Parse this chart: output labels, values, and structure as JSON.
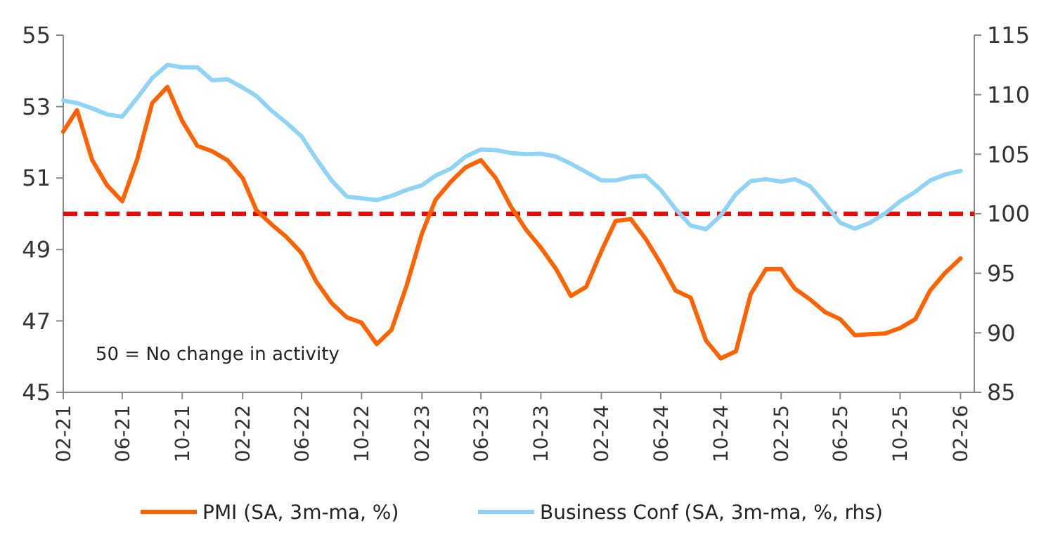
{
  "chart_data": {
    "type": "line",
    "x": [
      "2021-02",
      "2021-03",
      "2021-04",
      "2021-05",
      "2021-06",
      "2021-07",
      "2021-08",
      "2021-09",
      "2021-10",
      "2021-11",
      "2021-12",
      "2022-01",
      "2022-02",
      "2022-03",
      "2022-04",
      "2022-05",
      "2022-06",
      "2022-07",
      "2022-08",
      "2022-09",
      "2022-10",
      "2022-11",
      "2022-12",
      "2023-01",
      "2023-02",
      "2023-03",
      "2023-04",
      "2023-05",
      "2023-06",
      "2023-07",
      "2023-08",
      "2023-09",
      "2023-10",
      "2023-11",
      "2023-12",
      "2024-01",
      "2024-02",
      "2024-03",
      "2024-04",
      "2024-05",
      "2024-06",
      "2024-07",
      "2024-08",
      "2024-09",
      "2024-10",
      "2024-11",
      "2024-12",
      "2025-01",
      "2025-02",
      "2025-03",
      "2025-04",
      "2025-05",
      "2025-06",
      "2025-07",
      "2025-08",
      "2025-09",
      "2025-10",
      "2025-11",
      "2025-12",
      "2026-01",
      "2026-02"
    ],
    "series": [
      {
        "name": "PMI (SA, 3m-ma, %)",
        "color": "#ff6200",
        "values": [
          52.3,
          52.9,
          51.5,
          50.8,
          50.35,
          51.5,
          53.1,
          53.55,
          52.6,
          51.9,
          51.75,
          51.5,
          51.0,
          50.1,
          49.7,
          49.35,
          48.9,
          48.1,
          47.5,
          47.1,
          46.95,
          46.35,
          46.75,
          48.0,
          49.45,
          50.4,
          50.9,
          51.3,
          51.5,
          51.0,
          50.2,
          49.55,
          49.05,
          48.45,
          47.7,
          47.95,
          48.95,
          49.8,
          49.85,
          49.3,
          48.6,
          47.85,
          47.65,
          46.45,
          45.95,
          46.15,
          47.75,
          48.45,
          48.45,
          47.9,
          47.6,
          47.25,
          47.05,
          46.6,
          46.63,
          46.65,
          46.8,
          47.05,
          47.85,
          48.35,
          48.75
        ]
      },
      {
        "name": "Business Conf (SA, 3m-ma, %, rhs)",
        "color": "#8fd3f7",
        "axis": "y2",
        "values": [
          109.5,
          109.3,
          108.85,
          108.35,
          108.15,
          109.7,
          111.4,
          112.5,
          112.3,
          112.3,
          111.2,
          111.3,
          110.6,
          109.9,
          108.65,
          107.65,
          106.5,
          104.6,
          102.8,
          101.45,
          101.3,
          101.15,
          101.5,
          102.0,
          102.4,
          103.2,
          103.8,
          104.8,
          105.4,
          105.35,
          105.1,
          105.0,
          105.05,
          104.8,
          104.2,
          103.5,
          102.8,
          102.8,
          103.1,
          103.2,
          102.0,
          100.4,
          99.0,
          98.7,
          99.85,
          101.65,
          102.75,
          102.9,
          102.7,
          102.9,
          102.3,
          100.85,
          99.25,
          98.75,
          99.25,
          100.05,
          101.05,
          101.85,
          102.8,
          103.3,
          103.6
        ]
      }
    ],
    "xlim": [
      "2021-02",
      "2026-03"
    ],
    "xticks": [
      {
        "value": "2021-02",
        "label": "02-21"
      },
      {
        "value": "2021-06",
        "label": "06-21"
      },
      {
        "value": "2021-10",
        "label": "10-21"
      },
      {
        "value": "2022-02",
        "label": "02-22"
      },
      {
        "value": "2022-06",
        "label": "06-22"
      },
      {
        "value": "2022-10",
        "label": "10-22"
      },
      {
        "value": "2023-02",
        "label": "02-23"
      },
      {
        "value": "2023-06",
        "label": "06-23"
      },
      {
        "value": "2023-10",
        "label": "10-23"
      },
      {
        "value": "2024-02",
        "label": "02-24"
      },
      {
        "value": "2024-06",
        "label": "06-24"
      },
      {
        "value": "2024-10",
        "label": "10-24"
      },
      {
        "value": "2025-02",
        "label": "02-25"
      },
      {
        "value": "2025-06",
        "label": "06-25"
      },
      {
        "value": "2025-10",
        "label": "10-25"
      },
      {
        "value": "2026-02",
        "label": "02-26"
      }
    ],
    "ylim": [
      45,
      55
    ],
    "yticks": [
      45,
      47,
      49,
      51,
      53,
      55
    ],
    "y2lim": [
      85,
      115
    ],
    "y2ticks": [
      85,
      90,
      95,
      100,
      105,
      110,
      115
    ],
    "ref_lines": [
      {
        "axis": "y",
        "value": 50,
        "color": "#ff0000",
        "line_style": "dashed"
      }
    ],
    "annotations": [
      "50 = No change in activity"
    ],
    "legend": "bottom",
    "grid": false,
    "marker": "none",
    "line_style": "solid"
  }
}
